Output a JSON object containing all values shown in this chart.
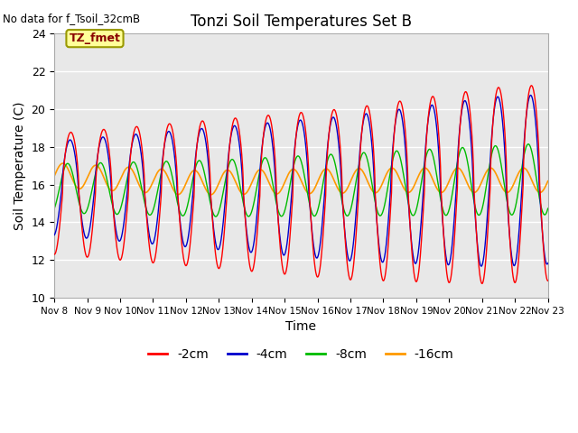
{
  "title": "Tonzi Soil Temperatures Set B",
  "no_data_label": "No data for f_Tsoil_32cmB",
  "tz_fmet_label": "TZ_fmet",
  "xlabel": "Time",
  "ylabel": "Soil Temperature (C)",
  "xlim": [
    0,
    15
  ],
  "ylim": [
    10,
    24
  ],
  "yticks": [
    10,
    12,
    14,
    16,
    18,
    20,
    22,
    24
  ],
  "xtick_labels": [
    "Nov 8",
    "Nov 9",
    "Nov 10",
    "Nov 11",
    "Nov 12",
    "Nov 13",
    "Nov 14",
    "Nov 15",
    "Nov 16",
    "Nov 17",
    "Nov 18",
    "Nov 19",
    "Nov 20",
    "Nov 21",
    "Nov 22",
    "Nov 23"
  ],
  "colors": {
    "2cm": "#ff0000",
    "4cm": "#0000cc",
    "8cm": "#00bb00",
    "16cm": "#ff9900"
  },
  "background_gray": "#e8e8e8",
  "grid_color": "#ffffff",
  "tz_fmet_box_color": "#ffff99",
  "tz_fmet_border_color": "#999900",
  "tz_fmet_text_color": "#880000",
  "figsize": [
    6.4,
    4.8
  ],
  "dpi": 100
}
